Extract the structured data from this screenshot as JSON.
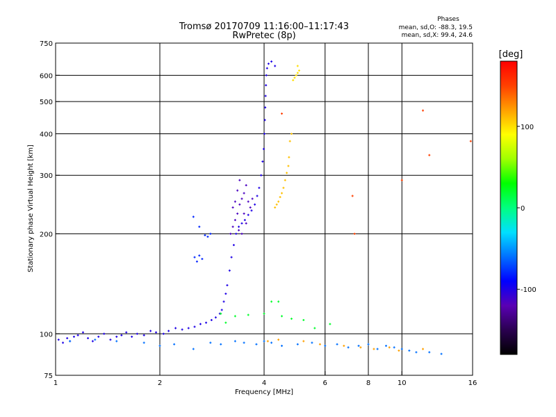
{
  "chart_data": {
    "type": "scatter",
    "title": "Tromsø 20170709 11:16:00–11:17:43",
    "subtitle": "RwPretec (8p)",
    "xlabel": "Frequency [MHz]",
    "ylabel": "Stationary phase Virtual Height [km]",
    "x_scale": "log",
    "y_scale": "log",
    "xlim": [
      1,
      16
    ],
    "ylim": [
      75,
      750
    ],
    "grid": true,
    "x_ticks": [
      1,
      2,
      4,
      6,
      8,
      10,
      16
    ],
    "y_ticks": [
      75,
      100,
      200,
      300,
      400,
      500,
      600,
      750
    ],
    "phase_box": {
      "title": "Phases",
      "line_o": "mean, sd,O: -88.3, 19.5",
      "line_x": "mean, sd,X:  99.4, 24.6"
    },
    "colorbar": {
      "label": "[deg]",
      "min": -180,
      "max": 180,
      "ticks": [
        100,
        0,
        -100
      ],
      "colors": [
        "#000000",
        "#2a0050",
        "#5a00b4",
        "#0000ff",
        "#0070ff",
        "#00e0ff",
        "#00ff80",
        "#00ff00",
        "#a0ff00",
        "#ffff00",
        "#ffa000",
        "#ff4000",
        "#ff0000"
      ]
    },
    "series": [
      {
        "points": [
          [
            1.02,
            96
          ],
          [
            1.05,
            94
          ],
          [
            1.08,
            97
          ],
          [
            1.1,
            95
          ],
          [
            1.13,
            98
          ],
          [
            1.16,
            99
          ],
          [
            1.2,
            101
          ],
          [
            1.24,
            97
          ],
          [
            1.28,
            95
          ],
          [
            1.33,
            98
          ],
          [
            1.38,
            100
          ],
          [
            1.44,
            96
          ],
          [
            1.5,
            98
          ],
          [
            1.55,
            99
          ],
          [
            1.6,
            101
          ],
          [
            1.66,
            98
          ],
          [
            1.72,
            100
          ],
          [
            1.8,
            99
          ],
          [
            1.88,
            102
          ],
          [
            1.95,
            101
          ],
          [
            2.05,
            100
          ],
          [
            2.12,
            102
          ],
          [
            2.22,
            104
          ],
          [
            2.32,
            103
          ],
          [
            2.42,
            104
          ],
          [
            2.52,
            105
          ],
          [
            2.62,
            107
          ],
          [
            2.72,
            108
          ],
          [
            2.82,
            110
          ],
          [
            2.9,
            112
          ],
          [
            2.98,
            115
          ],
          [
            3.02,
            118
          ],
          [
            3.06,
            125
          ],
          [
            3.1,
            132
          ],
          [
            3.13,
            140
          ],
          [
            3.18,
            155
          ],
          [
            3.22,
            170
          ],
          [
            3.27,
            185
          ],
          [
            3.32,
            200
          ],
          [
            3.38,
            210
          ],
          [
            3.45,
            215
          ],
          [
            3.52,
            220
          ],
          [
            3.6,
            228
          ],
          [
            3.68,
            235
          ],
          [
            3.76,
            245
          ],
          [
            3.82,
            260
          ],
          [
            3.87,
            275
          ],
          [
            3.92,
            300
          ],
          [
            3.96,
            330
          ],
          [
            3.99,
            360
          ],
          [
            4.01,
            400
          ],
          [
            4.02,
            440
          ],
          [
            4.03,
            480
          ],
          [
            4.04,
            520
          ],
          [
            4.05,
            560
          ],
          [
            4.06,
            600
          ],
          [
            4.08,
            630
          ],
          [
            4.12,
            650
          ],
          [
            4.2,
            660
          ],
          [
            4.3,
            640
          ]
        ],
        "phase": -100
      },
      {
        "points": [
          [
            3.2,
            200
          ],
          [
            3.25,
            210
          ],
          [
            3.3,
            220
          ],
          [
            3.35,
            230
          ],
          [
            3.4,
            245
          ],
          [
            3.45,
            255
          ],
          [
            3.5,
            265
          ],
          [
            3.55,
            280
          ],
          [
            3.4,
            290
          ],
          [
            3.35,
            270
          ],
          [
            3.3,
            250
          ],
          [
            3.25,
            240
          ],
          [
            3.5,
            230
          ],
          [
            3.55,
            215
          ],
          [
            3.45,
            200
          ],
          [
            3.38,
            205
          ],
          [
            3.6,
            250
          ],
          [
            3.65,
            240
          ],
          [
            3.7,
            255
          ]
        ],
        "phase": -115
      },
      {
        "points": [
          [
            2.52,
            170
          ],
          [
            2.56,
            165
          ],
          [
            2.6,
            172
          ],
          [
            2.65,
            168
          ],
          [
            2.5,
            225
          ],
          [
            2.6,
            210
          ],
          [
            2.7,
            198
          ],
          [
            2.75,
            196
          ],
          [
            2.8,
            200
          ]
        ],
        "phase": -80
      },
      {
        "points": [
          [
            4.3,
            240
          ],
          [
            4.35,
            245
          ],
          [
            4.4,
            250
          ],
          [
            4.45,
            258
          ],
          [
            4.5,
            265
          ],
          [
            4.55,
            275
          ],
          [
            4.6,
            290
          ],
          [
            4.65,
            305
          ],
          [
            4.7,
            320
          ],
          [
            4.72,
            340
          ],
          [
            4.75,
            380
          ],
          [
            4.8,
            400
          ]
        ],
        "phase": 110
      },
      {
        "points": [
          [
            4.85,
            580
          ],
          [
            4.9,
            590
          ],
          [
            4.95,
            600
          ],
          [
            5.0,
            610
          ],
          [
            5.05,
            620
          ],
          [
            5.0,
            640
          ]
        ],
        "phase": 100
      },
      {
        "points": [
          [
            1.1,
            95
          ],
          [
            1.3,
            96
          ],
          [
            1.5,
            95
          ],
          [
            1.8,
            94
          ],
          [
            2.0,
            92
          ],
          [
            2.2,
            93
          ],
          [
            2.5,
            90
          ],
          [
            2.8,
            94
          ],
          [
            3.0,
            93
          ],
          [
            3.3,
            95
          ],
          [
            3.5,
            94
          ],
          [
            3.8,
            93
          ],
          [
            4.0,
            95
          ],
          [
            4.2,
            94
          ],
          [
            4.5,
            92
          ],
          [
            5.0,
            93
          ],
          [
            5.5,
            94
          ],
          [
            6.0,
            92
          ],
          [
            6.5,
            93
          ],
          [
            7.0,
            91
          ],
          [
            7.5,
            92
          ],
          [
            8.0,
            93
          ],
          [
            8.5,
            90
          ],
          [
            9.0,
            92
          ],
          [
            9.5,
            91
          ],
          [
            10.0,
            90
          ],
          [
            10.5,
            89
          ],
          [
            11.0,
            88
          ],
          [
            12.0,
            88
          ],
          [
            13.0,
            87
          ]
        ],
        "phase": -60
      },
      {
        "points": [
          [
            4.1,
            95
          ],
          [
            4.4,
            96
          ],
          [
            5.2,
            95
          ],
          [
            5.8,
            93
          ],
          [
            6.8,
            92
          ],
          [
            7.6,
            91
          ],
          [
            8.3,
            90
          ],
          [
            9.2,
            91
          ],
          [
            9.8,
            89
          ],
          [
            11.5,
            90
          ]
        ],
        "phase": 120
      },
      {
        "points": [
          [
            3.0,
            115
          ],
          [
            3.3,
            113
          ],
          [
            3.6,
            114
          ],
          [
            4.0,
            115
          ],
          [
            4.2,
            125
          ],
          [
            4.5,
            113
          ],
          [
            4.8,
            111
          ],
          [
            5.2,
            110
          ],
          [
            5.6,
            104
          ],
          [
            6.2,
            107
          ],
          [
            4.4,
            125
          ],
          [
            3.1,
            108
          ]
        ],
        "phase": 20
      },
      {
        "points": [
          [
            4.5,
            460
          ],
          [
            7.2,
            260
          ],
          [
            7.3,
            200
          ],
          [
            10.0,
            290
          ],
          [
            11.5,
            470
          ],
          [
            12.0,
            345
          ],
          [
            15.8,
            380
          ]
        ],
        "phase": 150
      }
    ]
  }
}
